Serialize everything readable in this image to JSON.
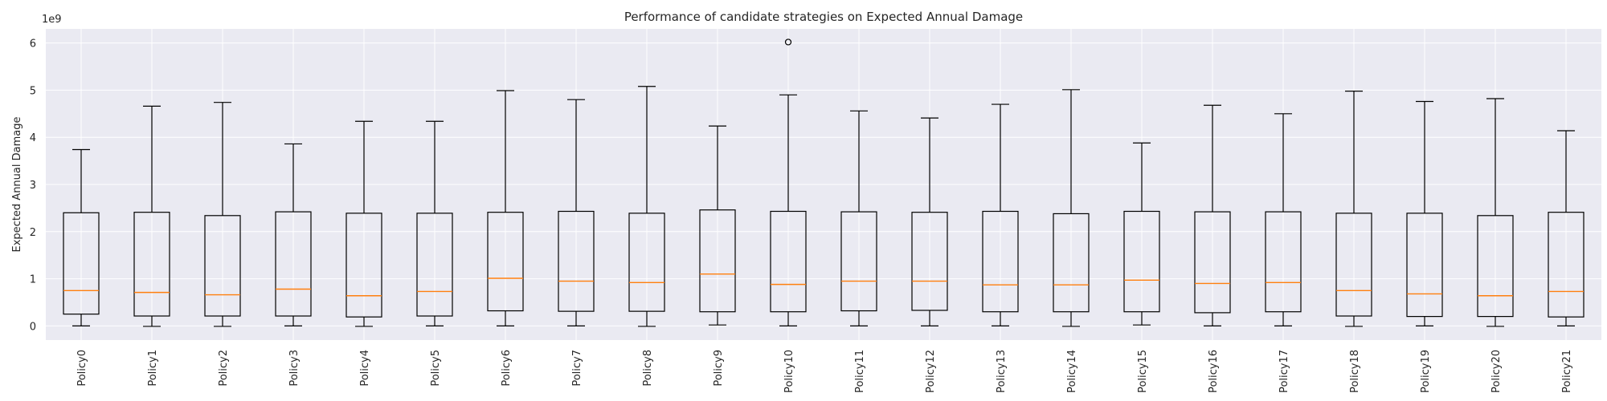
{
  "chart_data": {
    "type": "boxplot",
    "title": "Performance of candidate strategies on Expected Annual Damage",
    "xlabel": "",
    "ylabel": "Expected Annual Damage",
    "y_offset_label": "1e9",
    "ylim": [
      -0.3,
      6.3
    ],
    "yticks": [
      0,
      1,
      2,
      3,
      4,
      5,
      6
    ],
    "grid": true,
    "background_color": "#eaeaf2",
    "median_color": "#ff7f0e",
    "categories": [
      "Policy0",
      "Policy1",
      "Policy2",
      "Policy3",
      "Policy4",
      "Policy5",
      "Policy6",
      "Policy7",
      "Policy8",
      "Policy9",
      "Policy10",
      "Policy11",
      "Policy12",
      "Policy13",
      "Policy14",
      "Policy15",
      "Policy16",
      "Policy17",
      "Policy18",
      "Policy19",
      "Policy20",
      "Policy21"
    ],
    "boxes": [
      {
        "min": 0.0,
        "q1": 0.25,
        "median": 0.75,
        "q3": 2.4,
        "max": 3.74,
        "outliers": []
      },
      {
        "min": -0.01,
        "q1": 0.21,
        "median": 0.71,
        "q3": 2.41,
        "max": 4.66,
        "outliers": []
      },
      {
        "min": -0.01,
        "q1": 0.21,
        "median": 0.66,
        "q3": 2.34,
        "max": 4.74,
        "outliers": []
      },
      {
        "min": 0.0,
        "q1": 0.21,
        "median": 0.78,
        "q3": 2.42,
        "max": 3.86,
        "outliers": []
      },
      {
        "min": -0.01,
        "q1": 0.19,
        "median": 0.64,
        "q3": 2.39,
        "max": 4.34,
        "outliers": []
      },
      {
        "min": 0.0,
        "q1": 0.21,
        "median": 0.73,
        "q3": 2.39,
        "max": 4.34,
        "outliers": []
      },
      {
        "min": 0.0,
        "q1": 0.32,
        "median": 1.01,
        "q3": 2.41,
        "max": 4.99,
        "outliers": []
      },
      {
        "min": 0.0,
        "q1": 0.31,
        "median": 0.95,
        "q3": 2.43,
        "max": 4.8,
        "outliers": []
      },
      {
        "min": -0.01,
        "q1": 0.31,
        "median": 0.92,
        "q3": 2.39,
        "max": 5.08,
        "outliers": []
      },
      {
        "min": 0.02,
        "q1": 0.3,
        "median": 1.1,
        "q3": 2.46,
        "max": 4.24,
        "outliers": []
      },
      {
        "min": 0.0,
        "q1": 0.3,
        "median": 0.88,
        "q3": 2.43,
        "max": 4.9,
        "outliers": [
          6.02
        ]
      },
      {
        "min": 0.0,
        "q1": 0.32,
        "median": 0.95,
        "q3": 2.42,
        "max": 4.56,
        "outliers": []
      },
      {
        "min": 0.0,
        "q1": 0.33,
        "median": 0.95,
        "q3": 2.41,
        "max": 4.41,
        "outliers": []
      },
      {
        "min": 0.0,
        "q1": 0.3,
        "median": 0.87,
        "q3": 2.43,
        "max": 4.7,
        "outliers": []
      },
      {
        "min": -0.01,
        "q1": 0.3,
        "median": 0.87,
        "q3": 2.38,
        "max": 5.01,
        "outliers": []
      },
      {
        "min": 0.02,
        "q1": 0.3,
        "median": 0.97,
        "q3": 2.43,
        "max": 3.88,
        "outliers": []
      },
      {
        "min": 0.0,
        "q1": 0.28,
        "median": 0.9,
        "q3": 2.42,
        "max": 4.68,
        "outliers": []
      },
      {
        "min": 0.0,
        "q1": 0.3,
        "median": 0.92,
        "q3": 2.42,
        "max": 4.5,
        "outliers": []
      },
      {
        "min": -0.01,
        "q1": 0.21,
        "median": 0.75,
        "q3": 2.39,
        "max": 4.98,
        "outliers": []
      },
      {
        "min": 0.0,
        "q1": 0.2,
        "median": 0.68,
        "q3": 2.39,
        "max": 4.76,
        "outliers": []
      },
      {
        "min": -0.01,
        "q1": 0.2,
        "median": 0.64,
        "q3": 2.34,
        "max": 4.82,
        "outliers": []
      },
      {
        "min": 0.0,
        "q1": 0.19,
        "median": 0.73,
        "q3": 2.41,
        "max": 4.14,
        "outliers": []
      }
    ]
  }
}
